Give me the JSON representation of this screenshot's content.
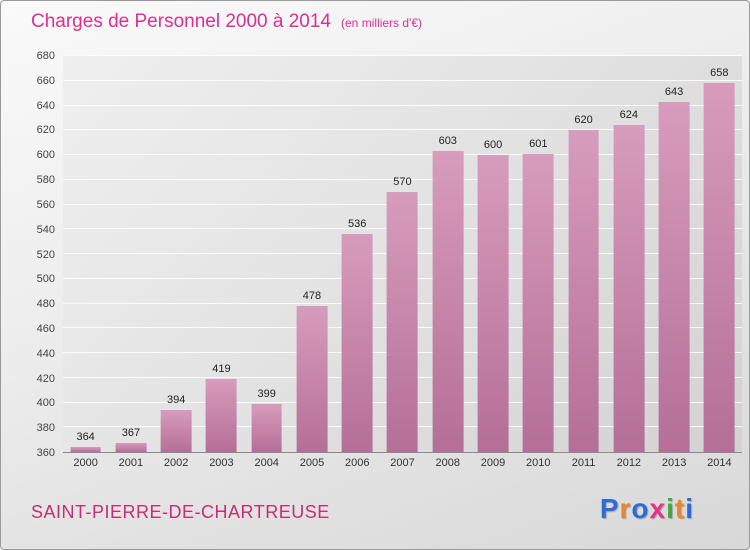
{
  "page": {
    "title": "Charges de Personnel 2000 à 2014",
    "subtitle": "(en milliers d'€)",
    "footer_left": "SAINT-PIERRE-DE-CHARTREUSE",
    "logo": {
      "text": "Proxiti",
      "letters": [
        {
          "ch": "P",
          "color": "#2e6bd6"
        },
        {
          "ch": "r",
          "color": "#e8862c"
        },
        {
          "ch": "o",
          "color": "#2e6bd6"
        },
        {
          "ch": "x",
          "color": "#e8338a"
        },
        {
          "ch": "i",
          "color": "#41a940"
        },
        {
          "ch": "t",
          "color": "#e8862c"
        },
        {
          "ch": "i",
          "color": "#2e6bd6"
        }
      ]
    }
  },
  "colors": {
    "title": "#dd2f92",
    "footer": "#c22f72",
    "bar_top": "#d79cbb",
    "bar_bottom": "#b56f97",
    "axis_text": "#333333"
  },
  "chart_data": {
    "type": "bar",
    "title": "Charges de Personnel 2000 à 2014",
    "subtitle": "(en milliers d'€)",
    "categories": [
      "2000",
      "2001",
      "2002",
      "2003",
      "2004",
      "2005",
      "2006",
      "2007",
      "2008",
      "2009",
      "2010",
      "2011",
      "2012",
      "2013",
      "2014"
    ],
    "values": [
      364,
      367,
      394,
      419,
      399,
      478,
      536,
      570,
      603,
      600,
      601,
      620,
      624,
      643,
      658
    ],
    "xlabel": "",
    "ylabel": "",
    "ylim": [
      360,
      680
    ],
    "ytick_step": 20,
    "grid": true,
    "legend": "none"
  }
}
